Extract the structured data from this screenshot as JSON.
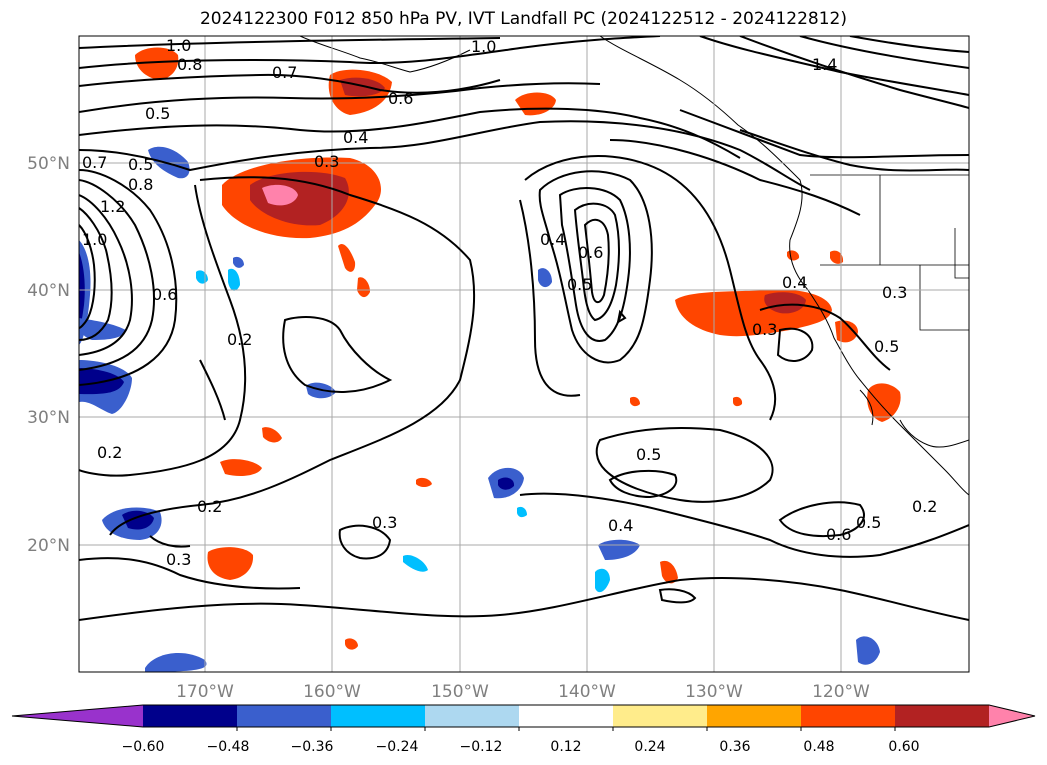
{
  "title": "2024122300 F012 850 hPa PV, IVT Landfall PC (2024122512 - 2024122812)",
  "axes": {
    "lon_ticks": [
      "170°W",
      "160°W",
      "150°W",
      "140°W",
      "130°W",
      "120°W"
    ],
    "lat_ticks": [
      "50°N",
      "40°N",
      "30°N",
      "20°N"
    ]
  },
  "contour_labels": [
    "1.0",
    "0.8",
    "0.7",
    "0.5",
    "0.4",
    "0.3",
    "0.6",
    "1.0",
    "1.4",
    "0.7",
    "0.5",
    "0.8",
    "1.2",
    "1.0",
    "0.6",
    "0.2",
    "0.4",
    "0.6",
    "0.5",
    "0.4",
    "0.3",
    "0.3",
    "0.5",
    "0.2",
    "0.2",
    "0.3",
    "0.3",
    "0.5",
    "0.4",
    "0.6",
    "0.5",
    "0.2"
  ],
  "colorbar": {
    "ticks": [
      "−0.60",
      "−0.48",
      "−0.36",
      "−0.24",
      "−0.12",
      "0.12",
      "0.24",
      "0.36",
      "0.48",
      "0.60"
    ],
    "colors": [
      "#9932cc",
      "#00008b",
      "#3a5fcd",
      "#00bfff",
      "#add8f0",
      "#ffffff",
      "#ffec8b",
      "#ffa500",
      "#ff4500",
      "#b22222",
      "#ff82ab"
    ]
  }
}
